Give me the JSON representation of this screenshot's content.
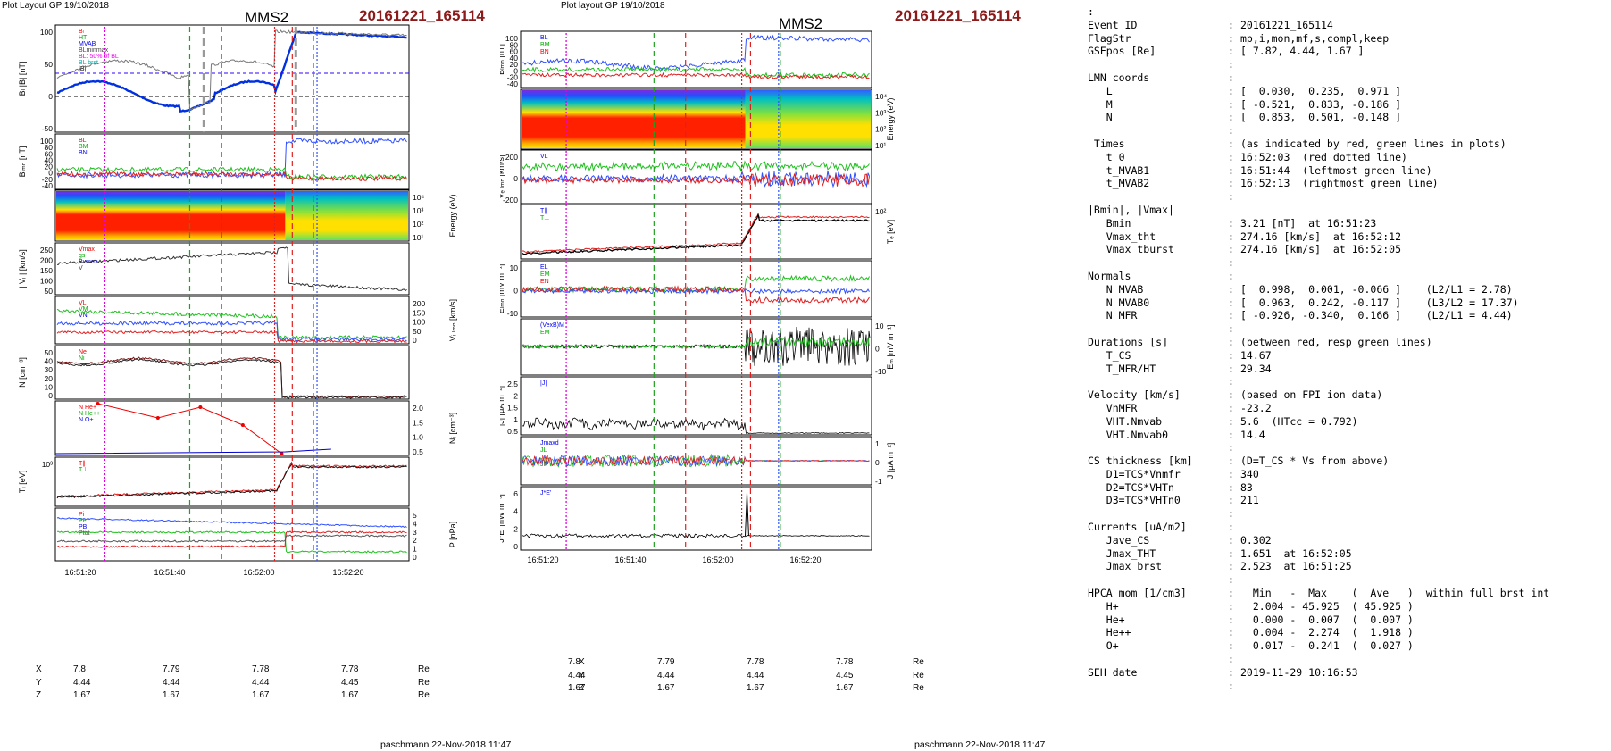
{
  "left": {
    "plot_layout": "Plot Layout GP 19/10/2018",
    "sc": "MMS2",
    "event": "20161221_165114",
    "footer": "paschmann 22-Nov-2018 11:47",
    "time_ticks": [
      "16:51:20",
      "16:51:40",
      "16:52:00",
      "16:52:20"
    ],
    "coords": [
      {
        "label": "X",
        "values": [
          "7.8",
          "7.79",
          "7.78",
          "7.78"
        ],
        "unit": "Re"
      },
      {
        "label": "Y",
        "values": [
          "4.44",
          "4.44",
          "4.44",
          "4.45"
        ],
        "unit": "Re"
      },
      {
        "label": "Z",
        "values": [
          "1.67",
          "1.67",
          "1.67",
          "1.67"
        ],
        "unit": "Re"
      }
    ],
    "panels": [
      {
        "ylabel": "Bₗ,|B| [nT]",
        "yticks": [
          "100",
          "50",
          "0",
          "-50"
        ],
        "legend": [
          "Bₗ",
          "HT",
          "MVAB",
          "BLminmax",
          "BL: 50% of BL",
          "BL brst",
          "|B|"
        ]
      },
      {
        "ylabel": "Bₗₘₙ [nT]",
        "yticks": [
          "100",
          "80",
          "60",
          "40",
          "20",
          "0",
          "-20",
          "-40"
        ],
        "legend": [
          "BL",
          "BM",
          "BN"
        ]
      },
      {
        "ylabel": "Energy (eV)",
        "yticks_right": [
          "10⁴",
          "10³",
          "10²",
          "10¹"
        ]
      },
      {
        "ylabel": "| Vᵢ | [km/s]",
        "yticks": [
          "250",
          "200",
          "150",
          "100",
          "50"
        ],
        "legend": [
          "Vmax",
          "gs",
          "Bvmax",
          "V"
        ]
      },
      {
        "ylabel": "Vᵢ ₗₘₙ [km/s]",
        "yticks_right": [
          "200",
          "150",
          "100",
          "50",
          "0"
        ],
        "legend": [
          "VL",
          "VM",
          "VN"
        ]
      },
      {
        "ylabel": "N [cm⁻³]",
        "yticks": [
          "50",
          "40",
          "30",
          "20",
          "10",
          "0"
        ],
        "legend": [
          "Ne",
          "Ni"
        ]
      },
      {
        "ylabel": "Nᵢ [cm⁻³]",
        "yticks_right": [
          "2.0",
          "1.5",
          "1.0",
          "0.5"
        ],
        "legend": [
          "N He+",
          "N He++",
          "N O+"
        ]
      },
      {
        "ylabel": "Tᵢ [eV]",
        "yticks": [
          "10³"
        ],
        "legend": [
          "T∥",
          "T⊥"
        ]
      },
      {
        "ylabel": "P [nPa]",
        "yticks_right": [
          "5",
          "4",
          "3",
          "2",
          "1",
          "0"
        ],
        "legend": [
          "Pi",
          "Pe",
          "PB",
          "Ptot"
        ]
      }
    ]
  },
  "middle": {
    "plot_layout": "Plot layout GP 19/10/2018",
    "sc": "MMS2",
    "event": "20161221_165114",
    "footer": "paschmann 22-Nov-2018 11:47",
    "time_ticks": [
      "16:51:20",
      "16:51:40",
      "16:52:00",
      "16:52:20"
    ],
    "coords": [
      {
        "label": "X",
        "values": [
          "7.8",
          "7.79",
          "7.78",
          "7.78"
        ],
        "unit": "Re"
      },
      {
        "label": "Y",
        "values": [
          "4.44",
          "4.44",
          "4.44",
          "4.45"
        ],
        "unit": "Re"
      },
      {
        "label": "Z",
        "values": [
          "1.67",
          "1.67",
          "1.67",
          "1.67"
        ],
        "unit": "Re"
      }
    ],
    "panels": [
      {
        "ylabel": "Bₗₘₙ [nT]",
        "yticks": [
          "100",
          "80",
          "60",
          "40",
          "20",
          "0",
          "-20",
          "-40"
        ],
        "legend": [
          "BL",
          "BM",
          "BN"
        ]
      },
      {
        "ylabel": "Energy (eV)",
        "yticks_right": [
          "10⁴",
          "10³",
          "10²",
          "10¹"
        ]
      },
      {
        "ylabel": "Vₑ ₗₘₙ [km/s]",
        "yticks": [
          "200",
          "0",
          "-200"
        ],
        "legend": [
          "VL"
        ]
      },
      {
        "ylabel": "Tₑ [eV]",
        "yticks_right": [
          "10²"
        ],
        "legend": [
          "T∥",
          "T⊥"
        ]
      },
      {
        "ylabel": "Eₗₘₙ [mV m⁻¹]",
        "yticks": [
          "10",
          "0",
          "-10"
        ],
        "legend": [
          "EL",
          "EM",
          "EN"
        ]
      },
      {
        "ylabel": "Eₘ [mV m⁻¹]",
        "yticks_right": [
          "10",
          "0",
          "-10"
        ],
        "legend": [
          "(VexB)M",
          "EM"
        ]
      },
      {
        "ylabel": "|J| [μA m⁻²]",
        "yticks": [
          "2.5",
          "2",
          "1.5",
          "1",
          "0.5"
        ],
        "legend": [
          "|J|"
        ]
      },
      {
        "ylabel": "J [μA m⁻²]",
        "yticks_right": [
          "1",
          "0",
          "-1"
        ],
        "legend": [
          "Jmaxd",
          "JL",
          "JM",
          "JN"
        ]
      },
      {
        "ylabel": "J*E' [nW m⁻³]",
        "yticks": [
          "6",
          "4",
          "2",
          "0"
        ],
        "legend": [
          "J*E'"
        ]
      }
    ]
  },
  "info": [
    [
      ":",
      "",
      ""
    ],
    [
      "Event ID",
      ":",
      "20161221_165114"
    ],
    [
      "FlagStr",
      ":",
      "mp,i,mon,mf,s,compl,keep"
    ],
    [
      "GSEpos [Re]",
      ":",
      "[ 7.82, 4.44, 1.67 ]"
    ],
    [
      "",
      ":",
      ""
    ],
    [
      "LMN coords",
      ":",
      ""
    ],
    [
      "   L",
      ":",
      "[  0.030,  0.235,  0.971 ]"
    ],
    [
      "   M",
      ":",
      "[ -0.521,  0.833, -0.186 ]"
    ],
    [
      "   N",
      ":",
      "[  0.853,  0.501, -0.148 ]"
    ],
    [
      "",
      ":",
      ""
    ],
    [
      " Times",
      ":",
      "(as indicated by red, green lines in plots)"
    ],
    [
      "   t_0",
      ":",
      "16:52:03  (red dotted line)"
    ],
    [
      "   t_MVAB1",
      ":",
      "16:51:44  (leftmost green line)"
    ],
    [
      "   t_MVAB2",
      ":",
      "16:52:13  (rightmost green line)"
    ],
    [
      "",
      ":",
      ""
    ],
    [
      "|Bmin|, |Vmax|",
      "",
      ""
    ],
    [
      "   Bmin",
      ":",
      "3.21 [nT]  at 16:51:23"
    ],
    [
      "   Vmax_tht",
      ":",
      "274.16 [km/s]  at 16:52:12"
    ],
    [
      "   Vmax_tburst",
      ":",
      "274.16 [km/s]  at 16:52:05"
    ],
    [
      "",
      ":",
      ""
    ],
    [
      "Normals",
      ":",
      ""
    ],
    [
      "   N MVAB",
      ":",
      "[  0.998,  0.001, -0.066 ]    (L2/L1 = 2.78)"
    ],
    [
      "   N MVAB0",
      ":",
      "[  0.963,  0.242, -0.117 ]    (L3/L2 = 17.37)"
    ],
    [
      "   N MFR",
      ":",
      "[ -0.926, -0.340,  0.166 ]    (L2/L1 = 4.44)"
    ],
    [
      "",
      ":",
      ""
    ],
    [
      "Durations [s]",
      ":",
      "(between red, resp green lines)"
    ],
    [
      "   T_CS",
      ":",
      "14.67"
    ],
    [
      "   T_MFR/HT",
      ":",
      "29.34"
    ],
    [
      "",
      ":",
      ""
    ],
    [
      "Velocity [km/s]",
      ":",
      "(based on FPI ion data)"
    ],
    [
      "   VnMFR",
      ":",
      "-23.2"
    ],
    [
      "   VHT.Nmvab",
      ":",
      "5.6  (HTcc = 0.792)"
    ],
    [
      "   VHT.Nmvab0",
      ":",
      "14.4"
    ],
    [
      "",
      ":",
      ""
    ],
    [
      "CS thickness [km]",
      ":",
      "(D=T_CS * Vs from above)"
    ],
    [
      "   D1=TCS*Vnmfr",
      ":",
      "340"
    ],
    [
      "   D2=TCS*VHTn",
      ":",
      "83"
    ],
    [
      "   D3=TCS*VHTn0",
      ":",
      "211"
    ],
    [
      "",
      ":",
      ""
    ],
    [
      "Currents [uA/m2]",
      ":",
      ""
    ],
    [
      "   Jave_CS",
      ":",
      "0.302"
    ],
    [
      "   Jmax_THT",
      ":",
      "1.651  at 16:52:05"
    ],
    [
      "   Jmax_brst",
      ":",
      "2.523  at 16:51:25"
    ],
    [
      "",
      ":",
      ""
    ],
    [
      "HPCA mom [1/cm3]",
      ":",
      "  Min   -  Max    (  Ave   )  within full brst int"
    ],
    [
      "   H+",
      ":",
      "  2.004 - 45.925  ( 45.925 )"
    ],
    [
      "   He+",
      ":",
      "  0.000 -  0.007  (  0.007 )"
    ],
    [
      "   He++",
      ":",
      "  0.004 -  2.274  (  1.918 )"
    ],
    [
      "   O+",
      ":",
      "  0.017 -  0.241  (  0.027 )"
    ],
    [
      "",
      ":",
      ""
    ],
    [
      "SEH date",
      ":",
      "2019-11-29 10:16:53"
    ],
    [
      "",
      ":",
      ""
    ]
  ],
  "chart_data": [
    {
      "type": "line",
      "title": "MMS2",
      "subtitle": "20161221_165114",
      "xlabel": "",
      "x_ticks": [
        "16:51:20",
        "16:51:40",
        "16:52:00",
        "16:52:20"
      ],
      "series": [
        {
          "name": "BL",
          "values": [
            10,
            15,
            -10,
            -15,
            -25,
            -20,
            -5,
            5,
            20,
            40,
            90,
            92,
            90,
            88,
            85
          ]
        },
        {
          "name": "|B|",
          "values": [
            30,
            40,
            20,
            50,
            60,
            40,
            50,
            60,
            55,
            70,
            95,
            95,
            93,
            92,
            90
          ]
        },
        {
          "name": "Vi",
          "values": [
            230,
            225,
            220,
            215,
            210,
            215,
            225,
            250,
            275,
            80,
            70,
            60,
            50,
            45,
            40
          ]
        },
        {
          "name": "Ni",
          "values": [
            40,
            45,
            40,
            38,
            37,
            36,
            38,
            37,
            35,
            30,
            2,
            2,
            2,
            2,
            2
          ]
        }
      ]
    },
    {
      "type": "line",
      "title": "MMS2",
      "subtitle": "20161221_165114",
      "xlabel": "",
      "x_ticks": [
        "16:51:20",
        "16:51:40",
        "16:52:00",
        "16:52:20"
      ],
      "series": [
        {
          "name": "|J|",
          "values": [
            0.3,
            0.8,
            0.4,
            0.6,
            0.7,
            0.5,
            0.8,
            0.9,
            0.6,
            1.6,
            0.05,
            0.05,
            0.05,
            0.05,
            0.05
          ]
        },
        {
          "name": "J*E'",
          "values": [
            0.1,
            0.8,
            0.1,
            0.2,
            0.1,
            0.2,
            0.1,
            0.3,
            0.2,
            4.5,
            0.1,
            0,
            0,
            0,
            0
          ]
        }
      ]
    }
  ]
}
